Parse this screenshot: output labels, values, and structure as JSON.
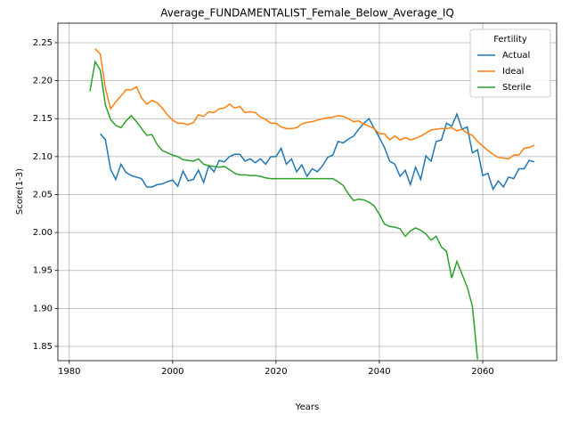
{
  "chart_data": {
    "type": "line",
    "title": "Average_FUNDAMENTALIST_Female_Below_Average_IQ",
    "xlabel": "Years",
    "ylabel": "Score(1-3)",
    "legend_title": "Fertility",
    "legend_loc": "upper right",
    "grid": true,
    "xlim": [
      1977.8,
      2074.3
    ],
    "ylim": [
      1.8312,
      2.2758
    ],
    "xticks": [
      1980,
      2000,
      2020,
      2040,
      2060
    ],
    "yticks": [
      1.85,
      {
        "value": 1.9,
        "label": "1.90"
      },
      1.95,
      {
        "value": 2.0,
        "label": "2.00"
      },
      2.05,
      {
        "value": 2.1,
        "label": "2.10"
      },
      2.15,
      {
        "value": 2.2,
        "label": "2.20"
      },
      2.25
    ],
    "x": [
      1984,
      1985,
      1986,
      1987,
      1988,
      1989,
      1990,
      1991,
      1992,
      1993,
      1994,
      1995,
      1996,
      1997,
      1998,
      1999,
      2000,
      2001,
      2002,
      2003,
      2004,
      2005,
      2006,
      2007,
      2008,
      2009,
      2010,
      2011,
      2012,
      2013,
      2014,
      2015,
      2016,
      2017,
      2018,
      2019,
      2020,
      2021,
      2022,
      2023,
      2024,
      2025,
      2026,
      2027,
      2028,
      2029,
      2030,
      2031,
      2032,
      2033,
      2034,
      2035,
      2036,
      2037,
      2038,
      2039,
      2040,
      2041,
      2042,
      2043,
      2044,
      2045,
      2046,
      2047,
      2048,
      2049,
      2050,
      2051,
      2052,
      2053,
      2054,
      2055,
      2056,
      2057,
      2058,
      2059,
      2060,
      2061,
      2062,
      2063,
      2064,
      2065,
      2066,
      2067,
      2068,
      2069,
      2070
    ],
    "series": [
      {
        "name": "Actual",
        "color": "#1f77b4",
        "values": [
          null,
          null,
          2.13,
          2.122,
          2.083,
          2.07,
          2.09,
          2.079,
          2.075,
          2.073,
          2.071,
          2.06,
          2.06,
          2.063,
          2.064,
          2.067,
          2.069,
          2.061,
          2.081,
          2.068,
          2.07,
          2.082,
          2.066,
          2.088,
          2.08,
          2.095,
          2.093,
          2.1,
          2.103,
          2.103,
          2.094,
          2.097,
          2.092,
          2.097,
          2.09,
          2.1,
          2.1,
          2.111,
          2.09,
          2.097,
          2.08,
          2.089,
          2.074,
          2.084,
          2.08,
          2.088,
          2.099,
          2.102,
          2.12,
          2.118,
          2.123,
          2.127,
          2.136,
          2.144,
          2.15,
          2.137,
          2.125,
          2.112,
          2.094,
          2.09,
          2.074,
          2.082,
          2.063,
          2.086,
          2.07,
          2.101,
          2.094,
          2.12,
          2.122,
          2.144,
          2.14,
          2.156,
          2.136,
          2.139,
          2.105,
          2.109,
          2.075,
          2.078,
          2.057,
          2.068,
          2.06,
          2.073,
          2.071,
          2.084,
          2.084,
          2.095,
          2.093
        ]
      },
      {
        "name": "Ideal",
        "color": "#ff7f0e",
        "values": [
          null,
          2.242,
          2.235,
          2.19,
          2.163,
          2.172,
          2.18,
          2.188,
          2.188,
          2.192,
          2.177,
          2.169,
          2.174,
          2.171,
          2.164,
          2.155,
          2.148,
          2.144,
          2.144,
          2.142,
          2.145,
          2.155,
          2.153,
          2.159,
          2.158,
          2.163,
          2.164,
          2.169,
          2.164,
          2.166,
          2.158,
          2.159,
          2.158,
          2.152,
          2.149,
          2.144,
          2.144,
          2.139,
          2.137,
          2.137,
          2.138,
          2.143,
          2.145,
          2.146,
          2.148,
          2.15,
          2.151,
          2.152,
          2.154,
          2.153,
          2.15,
          2.146,
          2.147,
          2.143,
          2.14,
          2.137,
          2.13,
          2.13,
          2.122,
          2.127,
          2.122,
          2.125,
          2.122,
          2.124,
          2.127,
          2.131,
          2.135,
          2.136,
          2.137,
          2.137,
          2.138,
          2.134,
          2.136,
          2.131,
          2.128,
          2.12,
          2.114,
          2.108,
          2.103,
          2.099,
          2.098,
          2.097,
          2.102,
          2.102,
          2.111,
          2.112,
          2.115
        ]
      },
      {
        "name": "Sterile",
        "color": "#2ca02c",
        "values": [
          2.186,
          2.225,
          2.214,
          2.168,
          2.149,
          2.141,
          2.138,
          2.147,
          2.154,
          2.146,
          2.137,
          2.128,
          2.129,
          2.116,
          2.108,
          2.105,
          2.102,
          2.1,
          2.096,
          2.095,
          2.094,
          2.097,
          2.09,
          2.088,
          2.087,
          2.086,
          2.087,
          2.083,
          2.078,
          2.076,
          2.076,
          2.075,
          2.075,
          2.074,
          2.072,
          2.071,
          2.071,
          2.071,
          2.071,
          2.071,
          2.071,
          2.071,
          2.071,
          2.071,
          2.071,
          2.071,
          2.071,
          2.071,
          2.067,
          2.062,
          2.051,
          2.042,
          2.044,
          2.043,
          2.04,
          2.035,
          2.024,
          2.011,
          2.008,
          2.007,
          2.005,
          1.995,
          2.002,
          2.006,
          2.003,
          1.998,
          1.99,
          1.995,
          1.981,
          1.975,
          1.94,
          1.962,
          1.945,
          1.928,
          1.903,
          1.833,
          null,
          null,
          null,
          null,
          null,
          null,
          null,
          null,
          null,
          null,
          null
        ]
      }
    ]
  }
}
